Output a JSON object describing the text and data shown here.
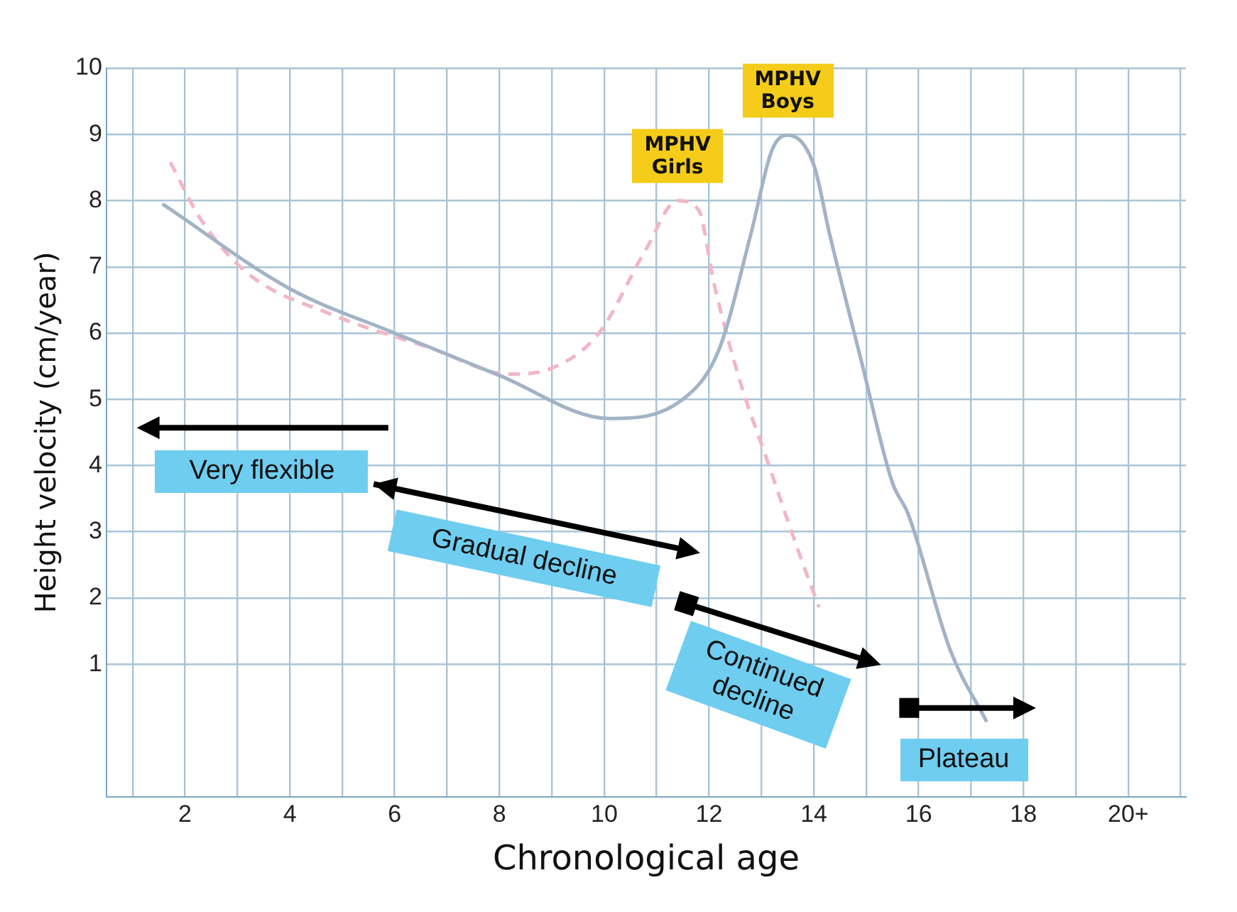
{
  "chart_data": {
    "type": "line",
    "xlabel": "Chronological age",
    "ylabel": "Height velocity (cm/year)",
    "xlim": [
      0.5,
      21.1
    ],
    "ylim": [
      -1,
      10
    ],
    "xticks": [
      {
        "value": 1,
        "label": null
      },
      2,
      {
        "value": 3,
        "label": null
      },
      4,
      {
        "value": 5,
        "label": null
      },
      6,
      {
        "value": 7,
        "label": null
      },
      8,
      {
        "value": 9,
        "label": null
      },
      10,
      {
        "value": 11,
        "label": null
      },
      12,
      {
        "value": 13,
        "label": null
      },
      14,
      {
        "value": 15,
        "label": null
      },
      16,
      {
        "value": 17,
        "label": null
      },
      18,
      {
        "value": 19,
        "label": null
      },
      {
        "value": 20,
        "label": "20+"
      },
      {
        "value": 21,
        "label": null
      }
    ],
    "yticks": [
      1,
      2,
      3,
      4,
      5,
      6,
      7,
      8,
      9,
      10
    ],
    "grid": true,
    "legend": false,
    "marker": "none",
    "series": [
      {
        "color": "#a3b3c6",
        "line_style": "solid",
        "x": [
          1.57,
          4,
          6,
          8,
          10.1,
          11.5,
          12.2,
          12.8,
          13.2,
          13.5,
          14,
          14.3,
          14.9,
          15.5,
          15.8,
          16.6,
          17.3
        ],
        "values": [
          7.95,
          6.67,
          6,
          5.36,
          4.71,
          5,
          5.77,
          7.5,
          8.76,
          8.99,
          8.54,
          7.5,
          5.6,
          3.74,
          3.27,
          1.22,
          0.13
        ]
      },
      {
        "color": "#f2b6c6",
        "line_style": "dashed",
        "x": [
          1.72,
          2.3,
          3.2,
          4.8,
          6.7,
          8.2,
          9,
          9.9,
          10.8,
          11.4,
          11.8,
          12.1,
          12.6,
          13.1,
          13.7,
          14.1
        ],
        "values": [
          8.58,
          7.72,
          6.9,
          6.28,
          5.77,
          5.38,
          5.47,
          6,
          7.27,
          8,
          7.86,
          6.73,
          5.25,
          4.1,
          2.72,
          1.86
        ]
      }
    ],
    "annotations": [
      "Very flexible",
      "Gradual decline",
      "Continued decline",
      "Plateau",
      {
        "text": "MPHV Girls",
        "x": 11.4,
        "y": 8
      },
      {
        "text": "MPHV Boys",
        "x": 13.5,
        "y": 9
      }
    ]
  }
}
